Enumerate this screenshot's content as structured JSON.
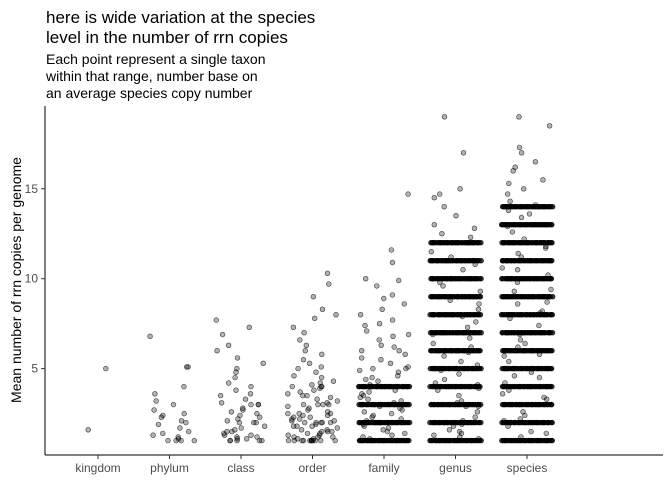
{
  "chart_data": {
    "type": "scatter",
    "title": "here is wide variation at the species level in the number of rrn copies",
    "title_lines": [
      "here is wide variation at the species",
      "level in the number of rrn copies"
    ],
    "subtitle": "Each point represent a single taxon within that range, number base on an average species copy number",
    "subtitle_lines": [
      "Each point represent a single taxon",
      "within that range, number base on",
      "an average species copy number"
    ],
    "xlabel": "",
    "ylabel": "Mean number of rrn copies per genome",
    "categories": [
      "kingdom",
      "phylum",
      "class",
      "order",
      "family",
      "genus",
      "species"
    ],
    "y_ticks": [
      5,
      10,
      15
    ],
    "ylim": [
      0.2,
      19.6
    ],
    "grid": false,
    "jitter": true,
    "point_color": "#000000",
    "point_opacity": 0.3,
    "points": {
      "kingdom": [
        5.0,
        1.6
      ],
      "phylum": [
        1.0,
        1.0,
        1.1,
        1.2,
        1.3,
        1.5,
        1.7,
        2.0,
        2.1,
        2.3,
        2.5,
        2.7,
        3.0,
        3.2,
        3.6,
        4.0,
        5.1,
        5.1,
        6.8,
        1.0,
        1.0,
        1.4,
        1.9,
        2.4
      ],
      "class": [
        1.0,
        1.0,
        1.0,
        1.1,
        1.2,
        1.3,
        1.4,
        1.5,
        1.6,
        1.7,
        1.8,
        2.0,
        2.0,
        2.1,
        2.2,
        2.3,
        2.5,
        2.6,
        2.8,
        3.0,
        3.0,
        3.1,
        3.3,
        3.5,
        3.6,
        3.8,
        4.0,
        4.2,
        4.5,
        4.8,
        5.0,
        5.3,
        5.6,
        6.0,
        6.3,
        6.9,
        7.3,
        7.7,
        1.0,
        1.0,
        1.2,
        1.5,
        2.0,
        2.4,
        2.7,
        3.0,
        1.1,
        1.3
      ],
      "order": [
        1.0,
        1.0,
        1.0,
        1.0,
        1.0,
        1.0,
        1.0,
        1.0,
        1.1,
        1.1,
        1.2,
        1.2,
        1.3,
        1.3,
        1.4,
        1.4,
        1.5,
        1.5,
        1.6,
        1.6,
        1.7,
        1.8,
        1.8,
        1.9,
        2.0,
        2.0,
        2.0,
        2.0,
        2.1,
        2.1,
        2.2,
        2.2,
        2.3,
        2.4,
        2.4,
        2.5,
        2.5,
        2.6,
        2.7,
        2.8,
        2.9,
        3.0,
        3.0,
        3.0,
        3.1,
        3.2,
        3.3,
        3.4,
        3.5,
        3.6,
        3.7,
        3.8,
        3.9,
        4.0,
        4.0,
        4.1,
        4.2,
        4.3,
        4.5,
        4.6,
        4.8,
        5.0,
        5.1,
        5.3,
        5.5,
        5.8,
        6.0,
        6.3,
        6.6,
        7.0,
        7.3,
        7.8,
        8.0,
        8.3,
        9.0,
        9.7,
        10.3,
        1.0,
        1.0,
        1.0,
        1.0,
        1.5,
        2.0,
        2.5,
        3.0,
        3.5,
        4.0,
        1.2,
        1.8,
        2.3
      ],
      "family": [
        14.7,
        11.6,
        10.9,
        10.0,
        9.9,
        9.6,
        9.1,
        8.9,
        8.6,
        8.3,
        8.0,
        7.7,
        7.4,
        7.1,
        6.9,
        6.6,
        6.3,
        6.0,
        5.8,
        5.5,
        5.3,
        5.1,
        4.8,
        4.6,
        4.3,
        4.1,
        3.8,
        3.6,
        3.4,
        3.2,
        2.9,
        2.7,
        2.5,
        2.3,
        2.1,
        1.9,
        1.7,
        1.5,
        1.3,
        1.2,
        5.0,
        4.5,
        3.5,
        3.3,
        2.6,
        2.4,
        2.2,
        1.8,
        1.6,
        1.4,
        5.6,
        6.2,
        6.8,
        7.5,
        4.9,
        4.4,
        3.7,
        3.1,
        2.8,
        2.0,
        1.1,
        1.0,
        1.0,
        1.0,
        1.0,
        1.0,
        2.0,
        2.0,
        2.0,
        2.0,
        3.0,
        3.0,
        3.0,
        4.0,
        4.0,
        5.0,
        6.0
      ],
      "genus": [
        19.0,
        17.0,
        15.0,
        14.7,
        14.5,
        14.0,
        13.5,
        13.0,
        12.8,
        12.5,
        12.0,
        11.5,
        11.0,
        10.8,
        10.5,
        10.0,
        9.6,
        9.3,
        9.0,
        8.6,
        8.3,
        8.0,
        7.6,
        7.3,
        7.0,
        6.7,
        6.4,
        6.0,
        5.7,
        5.4,
        5.0,
        4.7,
        4.4,
        4.1,
        3.8,
        3.5,
        3.2,
        2.9,
        2.6,
        2.3,
        2.0,
        1.8,
        1.6,
        1.4,
        1.2,
        1.1,
        12.3,
        11.2,
        9.8,
        8.8,
        7.9,
        6.9,
        5.9,
        4.9,
        3.9,
        2.9,
        1.9,
        1.3,
        6.2,
        5.2,
        4.2,
        3.1,
        2.1,
        1.5
      ],
      "species": [
        19.0,
        18.5,
        17.3,
        17.0,
        16.5,
        16.0,
        15.5,
        15.0,
        14.7,
        14.3,
        13.8,
        13.4,
        13.0,
        12.6,
        12.2,
        11.8,
        11.4,
        11.0,
        10.6,
        10.2,
        9.8,
        9.4,
        9.0,
        8.6,
        8.2,
        7.8,
        7.4,
        7.0,
        6.6,
        6.2,
        5.8,
        5.4,
        5.0,
        4.6,
        4.2,
        3.8,
        3.4,
        3.0,
        2.6,
        2.2,
        1.8,
        1.4,
        1.2,
        15.3,
        14.1,
        12.9,
        11.7,
        10.5,
        9.3,
        8.1,
        6.9,
        5.7,
        4.5,
        3.3,
        2.1,
        1.5,
        16.2,
        13.6,
        11.2,
        8.7,
        6.4,
        4.8,
        3.6,
        2.4
      ]
    },
    "bands": {
      "kingdom": [],
      "phylum": [],
      "class": [],
      "order": [],
      "family": [
        1,
        2,
        3,
        4
      ],
      "genus": [
        1,
        2,
        3,
        4,
        5,
        6,
        7,
        8,
        9,
        10,
        11,
        12
      ],
      "species": [
        1,
        2,
        3,
        4,
        5,
        6,
        7,
        8,
        9,
        10,
        11,
        12,
        13,
        14
      ]
    }
  }
}
